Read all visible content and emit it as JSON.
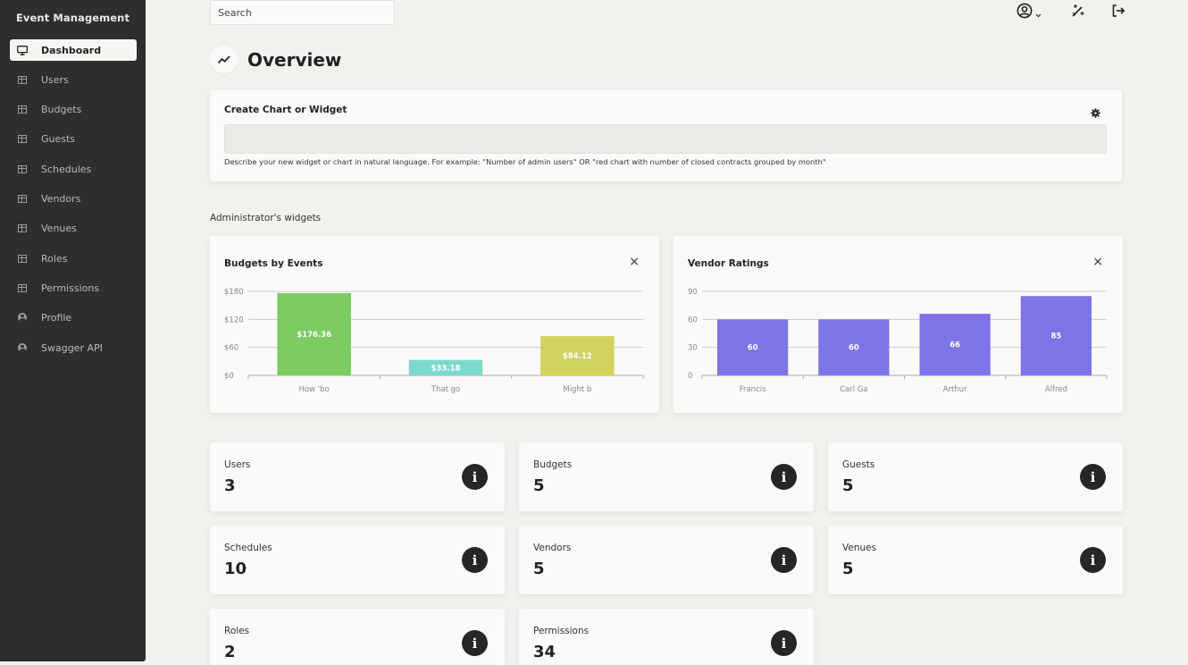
{
  "app": {
    "brand": "Event Management"
  },
  "sidebar": {
    "items": [
      {
        "label": "Dashboard",
        "icon": "monitor-icon",
        "active": true
      },
      {
        "label": "Users",
        "icon": "table-icon"
      },
      {
        "label": "Budgets",
        "icon": "table-icon"
      },
      {
        "label": "Guests",
        "icon": "table-icon"
      },
      {
        "label": "Schedules",
        "icon": "table-icon"
      },
      {
        "label": "Vendors",
        "icon": "table-icon"
      },
      {
        "label": "Venues",
        "icon": "table-icon"
      },
      {
        "label": "Roles",
        "icon": "table-icon"
      },
      {
        "label": "Permissions",
        "icon": "table-icon"
      },
      {
        "label": "Profile",
        "icon": "user-circle-icon"
      },
      {
        "label": "Swagger API",
        "icon": "user-circle-icon"
      }
    ]
  },
  "topbar": {
    "search_placeholder": "Search",
    "icons": [
      "user-circle-icon",
      "chevron-down-icon",
      "magic-wand-icon",
      "logout-icon"
    ]
  },
  "page": {
    "title": "Overview",
    "icon": "trend-line-icon"
  },
  "create_widget": {
    "title": "Create Chart or Widget",
    "input_value": "",
    "hint": "Describe your new widget or chart in natural language. For example: \"Number of admin users\" OR \"red chart with number of closed contracts grouped by month\"",
    "settings_icon": "gear-icon"
  },
  "widgets_section": {
    "label": "Administrator's widgets"
  },
  "chart_data": [
    {
      "type": "bar",
      "title": "Budgets by Events",
      "categories": [
        "How 'bo",
        "That go",
        "Might b"
      ],
      "values": [
        176.36,
        33.18,
        84.12
      ],
      "value_labels": [
        "$176.36",
        "$33.18",
        "$84.12"
      ],
      "bar_colors": [
        "#7ccb63",
        "#7ed9cd",
        "#d1d35f"
      ],
      "yticks": [
        "$0",
        "$60",
        "$120",
        "$180"
      ],
      "ylim": [
        0,
        180
      ],
      "grid": true
    },
    {
      "type": "bar",
      "title": "Vendor Ratings",
      "categories": [
        "Francis",
        "Carl Ga",
        "Arthur",
        "Alfred"
      ],
      "values": [
        60,
        60,
        66,
        85
      ],
      "value_labels": [
        "60",
        "60",
        "66",
        "85"
      ],
      "bar_colors": [
        "#7e74e8",
        "#7e74e8",
        "#7e74e8",
        "#7e74e8"
      ],
      "yticks": [
        "0",
        "30",
        "60",
        "90"
      ],
      "ylim": [
        0,
        90
      ],
      "grid": true
    }
  ],
  "stats": [
    {
      "label": "Users",
      "value": "3"
    },
    {
      "label": "Budgets",
      "value": "5"
    },
    {
      "label": "Guests",
      "value": "5"
    },
    {
      "label": "Schedules",
      "value": "10"
    },
    {
      "label": "Vendors",
      "value": "5"
    },
    {
      "label": "Venues",
      "value": "5"
    },
    {
      "label": "Roles",
      "value": "2"
    },
    {
      "label": "Permissions",
      "value": "34"
    }
  ],
  "colors": {
    "sidebar_bg": "#2e2e2e",
    "page_bg": "#f3f1ee",
    "card_bg": "#fbfaf8"
  }
}
